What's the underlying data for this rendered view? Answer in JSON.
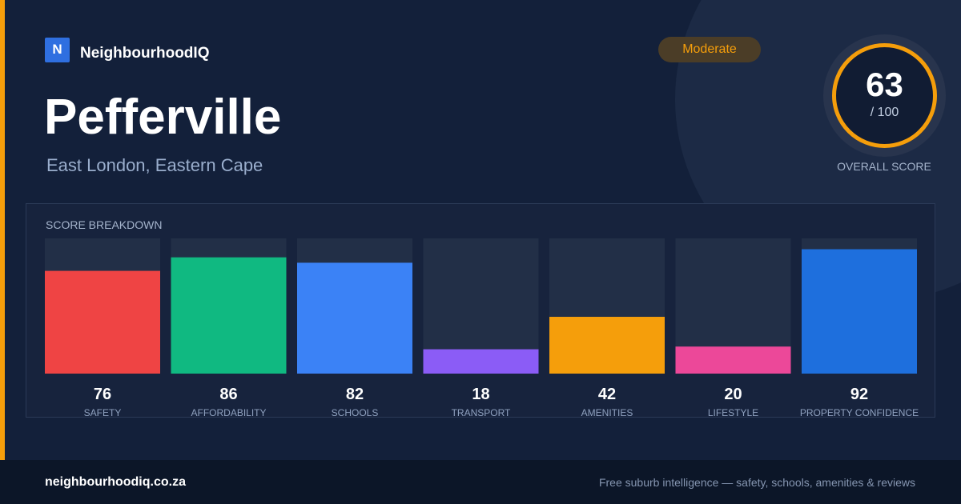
{
  "brand": {
    "logo_letter": "N",
    "name": "NeighbourhoodIQ"
  },
  "suburb": {
    "name": "Pefferville",
    "location": "East London, Eastern Cape"
  },
  "rating_badge": "Moderate",
  "overall": {
    "score": "63",
    "max": "/ 100",
    "label": "OVERALL SCORE",
    "value": 63,
    "scale_max": 100,
    "color": "#f59e0b"
  },
  "breakdown": {
    "title": "SCORE BREAKDOWN"
  },
  "chart_data": {
    "type": "bar",
    "title": "SCORE BREAKDOWN",
    "ylim": [
      0,
      100
    ],
    "categories": [
      "SAFETY",
      "AFFORDABILITY",
      "SCHOOLS",
      "TRANSPORT",
      "AMENITIES",
      "LIFESTYLE",
      "PROPERTY CONFIDENCE"
    ],
    "values": [
      76,
      86,
      82,
      18,
      42,
      20,
      92
    ],
    "colors": [
      "#ef4444",
      "#10b981",
      "#3b82f6",
      "#8b5cf6",
      "#f59e0b",
      "#ec4899",
      "#1e6fdd"
    ],
    "track_color": "#222f47",
    "grid": false
  },
  "footer": {
    "url": "neighbourhoodiq.co.za",
    "tagline": "Free suburb intelligence — safety, schools, amenities & reviews"
  }
}
